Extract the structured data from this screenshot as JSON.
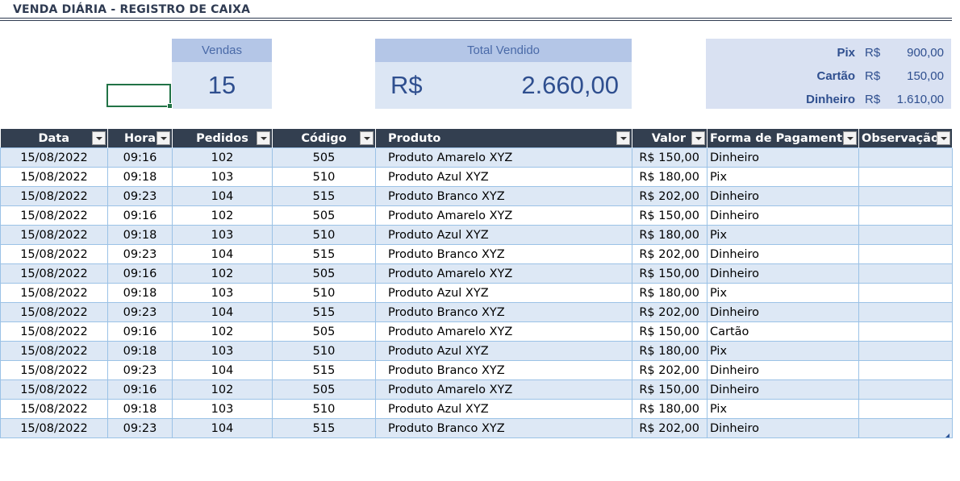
{
  "sheet": {
    "title": "VENDA DIÁRIA - REGISTRO DE CAIXA"
  },
  "summary": {
    "vendas": {
      "label": "Vendas",
      "value": "15"
    },
    "total": {
      "label": "Total Vendido",
      "currency": "R$",
      "value": "2.660,00"
    },
    "payments": [
      {
        "label": "Pix",
        "currency": "R$",
        "value": "900,00"
      },
      {
        "label": "Cartão",
        "currency": "R$",
        "value": "150,00"
      },
      {
        "label": "Dinheiro",
        "currency": "R$",
        "value": "1.610,00"
      }
    ]
  },
  "table": {
    "headers": [
      "Data",
      "Hora",
      "Pedidos",
      "Código",
      "Produto",
      "Valor",
      "Forma de Pagamento",
      "Observação"
    ],
    "rows": [
      [
        "15/08/2022",
        "09:16",
        "102",
        "505",
        "Produto Amarelo XYZ",
        "R$ 150,00",
        "Dinheiro",
        ""
      ],
      [
        "15/08/2022",
        "09:18",
        "103",
        "510",
        "Produto Azul XYZ",
        "R$ 180,00",
        "Pix",
        ""
      ],
      [
        "15/08/2022",
        "09:23",
        "104",
        "515",
        "Produto Branco XYZ",
        "R$ 202,00",
        "Dinheiro",
        ""
      ],
      [
        "15/08/2022",
        "09:16",
        "102",
        "505",
        "Produto Amarelo XYZ",
        "R$ 150,00",
        "Dinheiro",
        ""
      ],
      [
        "15/08/2022",
        "09:18",
        "103",
        "510",
        "Produto Azul XYZ",
        "R$ 180,00",
        "Pix",
        ""
      ],
      [
        "15/08/2022",
        "09:23",
        "104",
        "515",
        "Produto Branco XYZ",
        "R$ 202,00",
        "Dinheiro",
        ""
      ],
      [
        "15/08/2022",
        "09:16",
        "102",
        "505",
        "Produto Amarelo XYZ",
        "R$ 150,00",
        "Dinheiro",
        ""
      ],
      [
        "15/08/2022",
        "09:18",
        "103",
        "510",
        "Produto Azul XYZ",
        "R$ 180,00",
        "Pix",
        ""
      ],
      [
        "15/08/2022",
        "09:23",
        "104",
        "515",
        "Produto Branco XYZ",
        "R$ 202,00",
        "Dinheiro",
        ""
      ],
      [
        "15/08/2022",
        "09:16",
        "102",
        "505",
        "Produto Amarelo XYZ",
        "R$ 150,00",
        "Cartão",
        ""
      ],
      [
        "15/08/2022",
        "09:18",
        "103",
        "510",
        "Produto Azul XYZ",
        "R$ 180,00",
        "Pix",
        ""
      ],
      [
        "15/08/2022",
        "09:23",
        "104",
        "515",
        "Produto Branco XYZ",
        "R$ 202,00",
        "Dinheiro",
        ""
      ],
      [
        "15/08/2022",
        "09:16",
        "102",
        "505",
        "Produto Amarelo XYZ",
        "R$ 150,00",
        "Dinheiro",
        ""
      ],
      [
        "15/08/2022",
        "09:18",
        "103",
        "510",
        "Produto Azul XYZ",
        "R$ 180,00",
        "Pix",
        ""
      ],
      [
        "15/08/2022",
        "09:23",
        "104",
        "515",
        "Produto Branco XYZ",
        "R$ 202,00",
        "Dinheiro",
        ""
      ]
    ]
  },
  "colors": {
    "header_bg": "#333f50",
    "card_head": "#b4c6e7",
    "card_body": "#dce6f4",
    "band_row": "#dde8f5",
    "grid_line": "#9bc2e6",
    "selection": "#217346"
  },
  "icons": [
    "filter-dropdown-icon",
    "table-resize-handle-icon"
  ]
}
